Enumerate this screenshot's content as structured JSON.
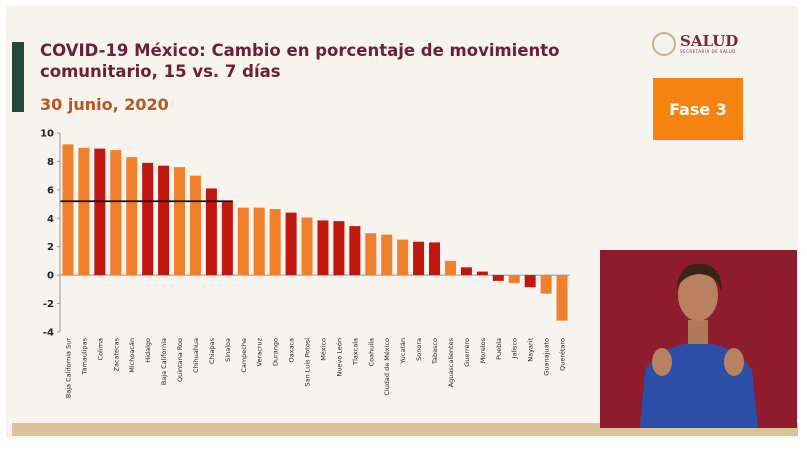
{
  "header": {
    "title": "COVID-19 México: Cambio en porcentaje de movimiento comunitario, 15 vs. 7 días",
    "date": "30 junio, 2020",
    "logo_text": "SALUD",
    "logo_subtitle": "SECRETARÍA DE SALUD",
    "phase": "Fase 3"
  },
  "colors": {
    "orange": "#f0802a",
    "dark_red": "#c0170f",
    "title": "#6e1e3c",
    "phase_bg": "#f5830f"
  },
  "chart_data": {
    "type": "bar",
    "title": "COVID-19 México: Cambio en porcentaje de movimiento comunitario, 15 vs. 7 días",
    "ylim": [
      -4,
      10
    ],
    "yticks": [
      10,
      8,
      6,
      4,
      2,
      0,
      -2,
      -4
    ],
    "categories": [
      "Baja California Sur",
      "Tamaulipas",
      "Colima",
      "Zacatecas",
      "Michoacán",
      "Hidalgo",
      "Baja California",
      "Quintana Roo",
      "Chihuahua",
      "Chiapas",
      "Sinaloa",
      "Campeche",
      "Veracruz",
      "Durango",
      "Oaxaca",
      "San Luis Potosí",
      "México",
      "Nuevo León",
      "Tlaxcala",
      "Coahuila",
      "Ciudad de México",
      "Yucatán",
      "Sonora",
      "Tabasco",
      "Aguascalientes",
      "Guerrero",
      "Morelos",
      "Puebla",
      "Jalisco",
      "Nayarit",
      "Guanajuato",
      "Querétaro"
    ],
    "values": [
      9.2,
      8.95,
      8.9,
      8.8,
      8.3,
      7.9,
      7.7,
      7.6,
      7.0,
      6.1,
      5.2,
      4.75,
      4.75,
      4.65,
      4.4,
      4.05,
      3.85,
      3.8,
      3.45,
      2.95,
      2.85,
      2.5,
      2.35,
      2.3,
      1.0,
      0.55,
      0.25,
      -0.4,
      -0.55,
      -0.85,
      -1.3,
      -3.2
    ],
    "highlight": [
      0,
      0,
      1,
      0,
      0,
      1,
      1,
      0,
      0,
      1,
      1,
      0,
      0,
      0,
      1,
      0,
      1,
      1,
      1,
      0,
      0,
      0,
      1,
      1,
      0,
      1,
      1,
      1,
      0,
      1,
      0,
      0
    ],
    "reference_line": {
      "value": 5.2,
      "from": "Baja California Sur",
      "to": "Sinaloa"
    }
  }
}
